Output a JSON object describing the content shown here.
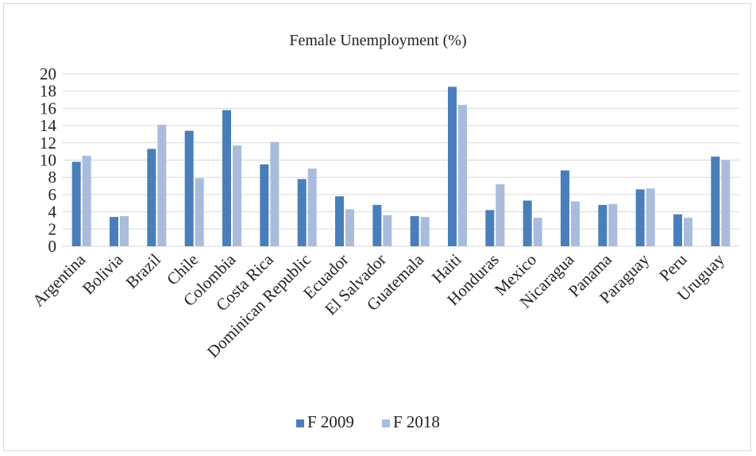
{
  "chart_data": {
    "type": "bar",
    "title": "Female Unemployment (%)",
    "categories": [
      "Argentina",
      "Bolivia",
      "Brazil",
      "Chile",
      "Colombia",
      "Costa Rica",
      "Dominican Republic",
      "Ecuador",
      "El Salvador",
      "Guatemala",
      "Haiti",
      "Honduras",
      "Mexico",
      "Nicaragua",
      "Panama",
      "Paraguay",
      "Peru",
      "Uruguay"
    ],
    "series": [
      {
        "name": "F 2009",
        "color": "#4a7ebb",
        "values": [
          9.8,
          3.4,
          11.3,
          13.4,
          15.8,
          9.5,
          7.8,
          5.8,
          4.8,
          3.5,
          18.5,
          4.2,
          5.3,
          8.8,
          4.8,
          6.6,
          3.7,
          10.4
        ]
      },
      {
        "name": "F 2018",
        "color": "#a9bcdb",
        "values": [
          10.5,
          3.5,
          14.1,
          7.9,
          11.7,
          12.1,
          9.0,
          4.3,
          3.6,
          3.4,
          16.4,
          7.2,
          3.3,
          5.2,
          4.9,
          6.7,
          3.3,
          10.0
        ]
      }
    ],
    "ylim": [
      0,
      20
    ],
    "yticks": [
      0,
      2,
      4,
      6,
      8,
      10,
      12,
      14,
      16,
      18,
      20
    ],
    "grid": true,
    "legend_position": "bottom"
  }
}
